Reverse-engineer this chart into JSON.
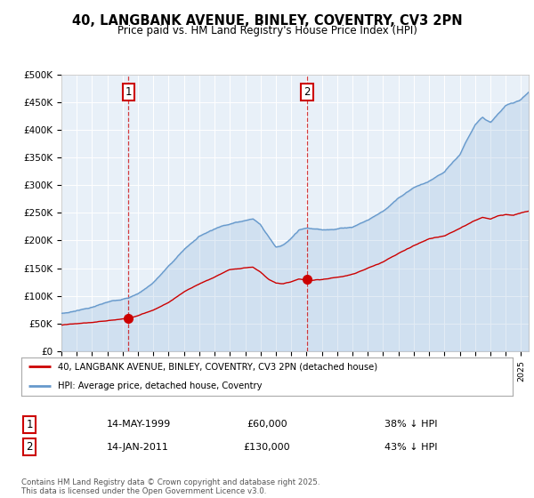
{
  "title_line1": "40, LANGBANK AVENUE, BINLEY, COVENTRY, CV3 2PN",
  "title_line2": "Price paid vs. HM Land Registry's House Price Index (HPI)",
  "ylim": [
    0,
    500000
  ],
  "xlim_start": 1995.0,
  "xlim_end": 2025.5,
  "sale1_x": 1999.37,
  "sale1_y": 60000,
  "sale1_label": "1",
  "sale1_date": "14-MAY-1999",
  "sale1_price": "£60,000",
  "sale1_hpi": "38% ↓ HPI",
  "sale2_x": 2011.04,
  "sale2_y": 130000,
  "sale2_label": "2",
  "sale2_date": "14-JAN-2011",
  "sale2_price": "£130,000",
  "sale2_hpi": "43% ↓ HPI",
  "legend_line1": "40, LANGBANK AVENUE, BINLEY, COVENTRY, CV3 2PN (detached house)",
  "legend_line2": "HPI: Average price, detached house, Coventry",
  "footer": "Contains HM Land Registry data © Crown copyright and database right 2025.\nThis data is licensed under the Open Government Licence v3.0.",
  "red_color": "#cc0000",
  "blue_color": "#6699cc",
  "plot_bg": "#e8f0f8"
}
